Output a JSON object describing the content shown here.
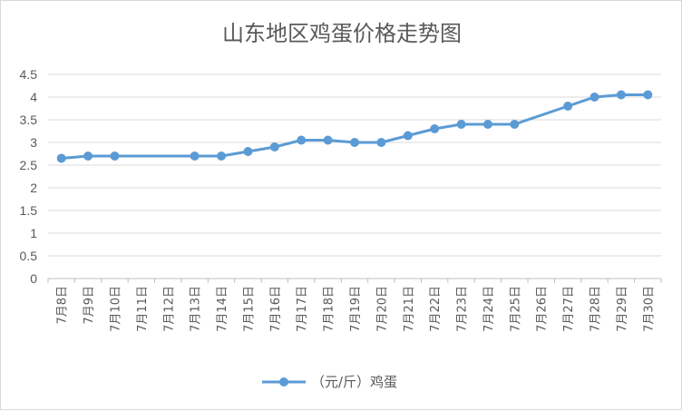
{
  "chart_data": {
    "type": "line",
    "title": "山东地区鸡蛋价格走势图",
    "categories": [
      "7月8日",
      "7月9日",
      "7月10日",
      "7月11日",
      "7月12日",
      "7月13日",
      "7月14日",
      "7月15日",
      "7月16日",
      "7月17日",
      "7月18日",
      "7月19日",
      "7月20日",
      "7月21日",
      "7月22日",
      "7月23日",
      "7月24日",
      "7月25日",
      "7月26日",
      "7月27日",
      "7月28日",
      "7月29日",
      "7月30日"
    ],
    "series": [
      {
        "name": "（元/斤）鸡蛋",
        "color": "#5B9BD5",
        "values": [
          2.65,
          2.7,
          2.7,
          null,
          null,
          2.7,
          2.7,
          2.8,
          2.9,
          3.05,
          3.05,
          3.0,
          3.0,
          3.15,
          3.3,
          3.4,
          3.4,
          3.4,
          null,
          3.8,
          4.0,
          4.05,
          4.05
        ]
      }
    ],
    "ylim": [
      0,
      4.5
    ],
    "yticks": [
      "0",
      "0.5",
      "1",
      "1.5",
      "2",
      "2.5",
      "3",
      "3.5",
      "4",
      "4.5"
    ],
    "grid": true,
    "legend": "bottom"
  }
}
